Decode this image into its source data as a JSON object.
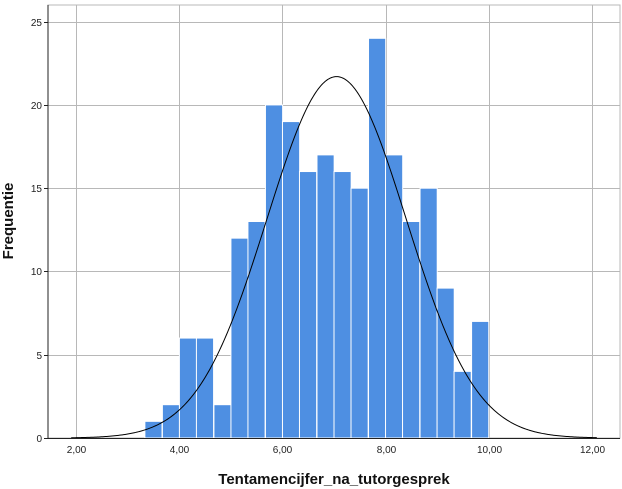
{
  "chart_data": {
    "type": "bar",
    "subtype": "histogram-with-normal-curve",
    "xlabel": "Tentamencijfer_na_tutorgesprek",
    "ylabel": "Frequentie",
    "xlim": [
      1.45,
      12.55
    ],
    "ylim": [
      0,
      26
    ],
    "x_ticks": [
      {
        "value": 2,
        "label": "2,00"
      },
      {
        "value": 4,
        "label": "4,00"
      },
      {
        "value": 6,
        "label": "6,00"
      },
      {
        "value": 8,
        "label": "8,00"
      },
      {
        "value": 10,
        "label": "10,00"
      },
      {
        "value": 12,
        "label": "12,00"
      }
    ],
    "y_ticks": [
      {
        "value": 0,
        "label": "0"
      },
      {
        "value": 5,
        "label": "5"
      },
      {
        "value": 10,
        "label": "10"
      },
      {
        "value": 15,
        "label": "15"
      },
      {
        "value": 20,
        "label": "20"
      },
      {
        "value": 25,
        "label": "25"
      }
    ],
    "bin_width": 0.333,
    "bins": [
      {
        "start": 3.33,
        "count": 1
      },
      {
        "start": 3.67,
        "count": 2
      },
      {
        "start": 4.0,
        "count": 6
      },
      {
        "start": 4.33,
        "count": 6
      },
      {
        "start": 4.67,
        "count": 2
      },
      {
        "start": 5.0,
        "count": 12
      },
      {
        "start": 5.33,
        "count": 13
      },
      {
        "start": 5.67,
        "count": 20
      },
      {
        "start": 6.0,
        "count": 19
      },
      {
        "start": 6.33,
        "count": 16
      },
      {
        "start": 6.67,
        "count": 17
      },
      {
        "start": 7.0,
        "count": 16
      },
      {
        "start": 7.33,
        "count": 15
      },
      {
        "start": 7.67,
        "count": 24
      },
      {
        "start": 8.0,
        "count": 17
      },
      {
        "start": 8.33,
        "count": 13
      },
      {
        "start": 8.67,
        "count": 15
      },
      {
        "start": 9.0,
        "count": 9
      },
      {
        "start": 9.33,
        "count": 4
      },
      {
        "start": 9.67,
        "count": 7
      }
    ],
    "normal_curve": {
      "mean": 7.05,
      "sd": 1.35,
      "peak": 21.7
    },
    "grid": true,
    "colors": {
      "bar_fill": "#4e8fe2",
      "bar_edge": "#ffffff",
      "grid": "#b8b8b8",
      "axis": "#222222",
      "curve": "#000000"
    }
  }
}
